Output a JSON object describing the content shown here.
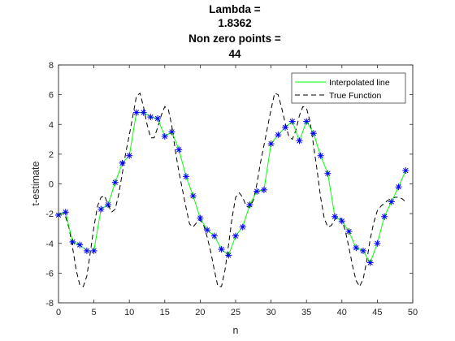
{
  "chart_data": {
    "type": "line",
    "title_lines": [
      "Lambda =",
      "1.8362",
      "Non zero points =",
      "44"
    ],
    "xlabel": "n",
    "ylabel": "t-estimate",
    "xlim": [
      0,
      50
    ],
    "ylim": [
      -8,
      8
    ],
    "xticks": [
      0,
      5,
      10,
      15,
      20,
      25,
      30,
      35,
      40,
      45,
      50
    ],
    "yticks": [
      -8,
      -6,
      -4,
      -2,
      0,
      2,
      4,
      6,
      8
    ],
    "grid": false,
    "legend_position": "top-right",
    "series": [
      {
        "name": "Interpolated line",
        "style": "solid",
        "color": "#00ff00",
        "markers": "asterisk",
        "marker_color": "#0000ff",
        "x": [
          0,
          1,
          2,
          3,
          4,
          5,
          6,
          7,
          8,
          9,
          10,
          11,
          12,
          13,
          14,
          15,
          16,
          17,
          18,
          19,
          20,
          21,
          22,
          23,
          24,
          25,
          26,
          27,
          28,
          29,
          30,
          31,
          32,
          33,
          34,
          35,
          36,
          37,
          38,
          39,
          40,
          41,
          42,
          43,
          44,
          45,
          46,
          47,
          48,
          49
        ],
        "y": [
          -2.1,
          -1.9,
          -3.9,
          -4.1,
          -4.5,
          -4.5,
          -1.7,
          -1.4,
          0.1,
          1.4,
          1.9,
          4.8,
          4.8,
          4.5,
          4.4,
          3.2,
          3.5,
          2.3,
          0.5,
          -0.8,
          -2.3,
          -3.1,
          -3.5,
          -4.4,
          -4.8,
          -3.5,
          -2.9,
          -1.4,
          -0.5,
          -0.4,
          2.7,
          3.3,
          3.8,
          4.2,
          2.9,
          4.2,
          3.4,
          1.9,
          0.7,
          -2.2,
          -2.5,
          -3.2,
          -4.3,
          -4.5,
          -5.3,
          -4.0,
          -2.2,
          -1.2,
          -0.2,
          0.9
        ]
      },
      {
        "name": "True Function",
        "style": "dashed",
        "color": "#000000",
        "x": [
          0,
          0.5,
          1,
          1.5,
          2,
          2.5,
          3,
          3.5,
          4,
          4.5,
          5,
          5.5,
          6,
          6.5,
          7,
          7.5,
          8,
          8.5,
          9,
          9.5,
          10,
          10.5,
          11,
          11.5,
          12,
          12.5,
          13,
          13.5,
          14,
          14.5,
          15,
          15.5,
          16,
          16.5,
          17,
          17.5,
          18,
          18.5,
          19,
          19.5,
          20,
          20.5,
          21,
          21.5,
          22,
          22.5,
          23,
          23.5,
          24,
          24.5,
          25,
          25.5,
          26,
          26.5,
          27,
          27.5,
          28,
          28.5,
          29,
          29.5,
          30,
          30.5,
          31,
          31.5,
          32,
          32.5,
          33,
          33.5,
          34,
          34.5,
          35,
          35.5,
          36,
          36.5,
          37,
          37.5,
          38,
          38.5,
          39,
          39.5,
          40,
          40.5,
          41,
          41.5,
          42,
          42.5,
          43,
          43.5,
          44,
          44.5,
          45,
          45.5,
          46,
          46.5,
          47,
          47.5,
          48,
          48.5,
          49
        ],
        "y": [
          -2.0,
          -2.0,
          -2.2,
          -3.0,
          -4.3,
          -5.8,
          -6.8,
          -6.9,
          -6.2,
          -4.6,
          -2.9,
          -1.5,
          -0.9,
          -0.8,
          -1.4,
          -1.9,
          -1.7,
          -0.7,
          0.7,
          2.1,
          3.3,
          4.6,
          5.9,
          6.1,
          5.2,
          4.0,
          3.1,
          3.1,
          3.8,
          4.6,
          5.2,
          5.0,
          3.9,
          2.2,
          0.8,
          -0.4,
          -1.6,
          -2.7,
          -2.9,
          -2.6,
          -2.4,
          -2.8,
          -3.6,
          -4.6,
          -5.8,
          -6.9,
          -6.9,
          -5.8,
          -4.1,
          -2.3,
          -0.9,
          -0.6,
          -0.9,
          -1.5,
          -1.6,
          -1.1,
          0.0,
          1.4,
          2.6,
          3.8,
          5.0,
          6.1,
          6.0,
          5.1,
          4.1,
          3.2,
          3.0,
          3.6,
          4.6,
          5.2,
          5.1,
          4.2,
          2.6,
          0.9,
          -0.9,
          -2.3,
          -2.9,
          -2.8,
          -2.4,
          -2.2,
          -2.4,
          -3.2,
          -4.3,
          -5.5,
          -6.5,
          -6.9,
          -6.4,
          -5.2,
          -3.7,
          -2.6,
          -1.8,
          -1.5,
          -1.3,
          -1.1,
          -1.0,
          -0.9,
          -0.9,
          -1.0,
          -1.2
        ]
      }
    ]
  }
}
